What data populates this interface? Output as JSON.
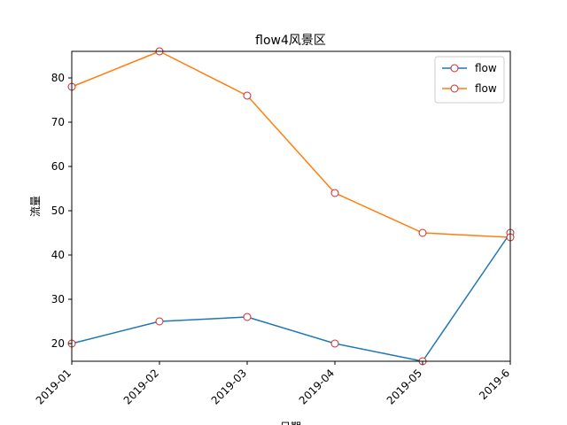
{
  "chart_data": {
    "type": "line",
    "title": "flow4风景区",
    "xlabel": "日期",
    "ylabel": "流量",
    "categories": [
      "2019-01",
      "2019-02",
      "2019-03",
      "2019-04",
      "2019-05",
      "2019-6"
    ],
    "ylim": [
      16,
      86
    ],
    "yticks": [
      20,
      30,
      40,
      50,
      60,
      70,
      80
    ],
    "x_tick_rotation": 45,
    "grid": false,
    "legend_position": "top-right",
    "series": [
      {
        "name": "flow",
        "values": [
          20,
          25,
          26,
          20,
          16,
          45
        ],
        "color": "#1f77b4"
      },
      {
        "name": "flow",
        "values": [
          78,
          86,
          76,
          54,
          45,
          44
        ],
        "color": "#ff7f0e"
      }
    ],
    "marker": {
      "shape": "circle",
      "face_color": "#ffffff",
      "edge_color": "#d62728"
    }
  }
}
